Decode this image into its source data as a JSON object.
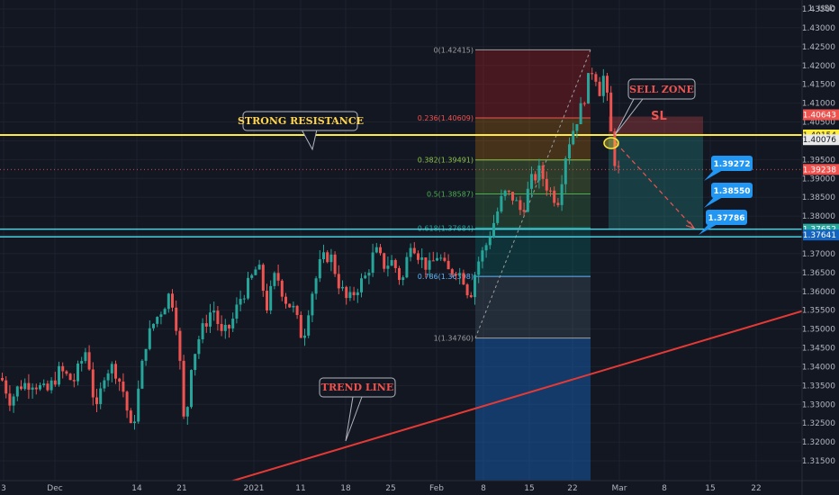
{
  "header": {
    "currency_label": "1. USD"
  },
  "chart_data": {
    "type": "candlestick",
    "title": "",
    "y_range": [
      1.31,
      1.4425
    ],
    "y_ticks": [
      "1.43500",
      "1.43000",
      "1.42500",
      "1.42000",
      "1.41500",
      "1.41000",
      "1.40500",
      "1.40000",
      "1.39500",
      "1.39000",
      "1.38500",
      "1.38000",
      "1.37500",
      "1.37000",
      "1.36500",
      "1.36000",
      "1.35500",
      "1.35000",
      "1.34500",
      "1.34000",
      "1.33500",
      "1.33000",
      "1.32500",
      "1.32000",
      "1.31500"
    ],
    "x_ticks": [
      "3",
      "Dec",
      "14",
      "21",
      "2021",
      "11",
      "18",
      "25",
      "Feb",
      "8",
      "15",
      "22",
      "Mar",
      "8",
      "15",
      "22"
    ],
    "price_path": [
      [
        0,
        1.337
      ],
      [
        10,
        1.331
      ],
      [
        20,
        1.335
      ],
      [
        35,
        1.336
      ],
      [
        50,
        1.333
      ],
      [
        65,
        1.339
      ],
      [
        80,
        1.336
      ],
      [
        95,
        1.345
      ],
      [
        105,
        1.327
      ],
      [
        115,
        1.339
      ],
      [
        125,
        1.34
      ],
      [
        135,
        1.334
      ],
      [
        145,
        1.322
      ],
      [
        150,
        1.33
      ],
      [
        160,
        1.346
      ],
      [
        170,
        1.352
      ],
      [
        180,
        1.356
      ],
      [
        188,
        1.36
      ],
      [
        196,
        1.349
      ],
      [
        204,
        1.321
      ],
      [
        210,
        1.34
      ],
      [
        220,
        1.348
      ],
      [
        235,
        1.356
      ],
      [
        245,
        1.348
      ],
      [
        255,
        1.351
      ],
      [
        265,
        1.358
      ],
      [
        275,
        1.362
      ],
      [
        285,
        1.367
      ],
      [
        295,
        1.356
      ],
      [
        305,
        1.365
      ],
      [
        315,
        1.358
      ],
      [
        325,
        1.355
      ],
      [
        335,
        1.347
      ],
      [
        343,
        1.358
      ],
      [
        355,
        1.368
      ],
      [
        365,
        1.37
      ],
      [
        375,
        1.362
      ],
      [
        385,
        1.357
      ],
      [
        395,
        1.361
      ],
      [
        405,
        1.364
      ],
      [
        415,
        1.371
      ],
      [
        425,
        1.367
      ],
      [
        435,
        1.368
      ],
      [
        445,
        1.362
      ],
      [
        455,
        1.374
      ],
      [
        465,
        1.369
      ],
      [
        475,
        1.366
      ],
      [
        485,
        1.37
      ],
      [
        495,
        1.365
      ],
      [
        505,
        1.366
      ],
      [
        515,
        1.363
      ],
      [
        520,
        1.358
      ],
      [
        528,
        1.367
      ],
      [
        538,
        1.372
      ],
      [
        548,
        1.379
      ],
      [
        558,
        1.386
      ],
      [
        568,
        1.385
      ],
      [
        578,
        1.381
      ],
      [
        588,
        1.389
      ],
      [
        598,
        1.392
      ],
      [
        608,
        1.387
      ],
      [
        618,
        1.384
      ],
      [
        628,
        1.398
      ],
      [
        638,
        1.405
      ],
      [
        646,
        1.41
      ],
      [
        652,
        1.416
      ],
      [
        658,
        1.42
      ],
      [
        664,
        1.413
      ],
      [
        670,
        1.418
      ],
      [
        676,
        1.404
      ],
      [
        681,
        1.395
      ],
      [
        686,
        1.392
      ]
    ],
    "fib_levels": [
      {
        "label": "0(1.42415)",
        "value": 1.42415
      },
      {
        "label": "0.236(1.40609)",
        "value": 1.40609
      },
      {
        "label": "0.382(1.39491)",
        "value": 1.39491
      },
      {
        "label": "0.5(1.38587)",
        "value": 1.38587
      },
      {
        "label": "0.618(1.37684)",
        "value": 1.37684
      },
      {
        "label": "0.786(1.36398)",
        "value": 1.36398
      },
      {
        "label": "1(1.34760)",
        "value": 1.3476
      }
    ],
    "horizontal_lines": [
      {
        "name": "strong-resistance",
        "value": 1.40154,
        "color": "#ffeb3b"
      },
      {
        "name": "support-upper",
        "value": 1.37652,
        "color": "#4dd0e1"
      },
      {
        "name": "support-lower",
        "value": 1.37641,
        "color": "#4dd0e1"
      }
    ],
    "trend_line": {
      "from_value": 1.31,
      "to_value": 1.355,
      "color": "#e53935"
    },
    "price_tags": [
      {
        "text": "1.40643",
        "value": 1.40643,
        "color": "#ef5350",
        "text_color": "#ffffff"
      },
      {
        "text": "1.40154",
        "value": 1.40154,
        "color": "#ffeb3b",
        "text_color": "#131722"
      },
      {
        "text": "1.40076",
        "value": 1.40076,
        "color": "#e8e8e8",
        "text_color": "#131722"
      },
      {
        "text": "1.39238",
        "value": 1.39238,
        "color": "#ef5350",
        "text_color": "#ffffff"
      },
      {
        "text": "1.37652",
        "value": 1.37652,
        "color": "#26a69a",
        "text_color": "#ffffff"
      },
      {
        "text": "1.37641",
        "value": 1.37641,
        "color": "#1565c0",
        "text_color": "#ffffff"
      }
    ],
    "annotations": {
      "strong_resistance": "STRONG RESISTANCE",
      "trend_line": "TREND LINE",
      "sell_zone": "SELL ZONE",
      "sl": "SL"
    },
    "targets": [
      {
        "text": "1.39272",
        "value": 1.39272
      },
      {
        "text": "1.38550",
        "value": 1.3855
      },
      {
        "text": "1.37786",
        "value": 1.37786
      }
    ],
    "colors": {
      "background": "#131722",
      "grid": "#1e222d",
      "bull": "#26a69a",
      "bear": "#ef5350",
      "fib_top": "#b71c1c",
      "fib_bottom": "#0d47a1",
      "short_stop": "#ef5350",
      "short_target": "#26a69a"
    }
  }
}
